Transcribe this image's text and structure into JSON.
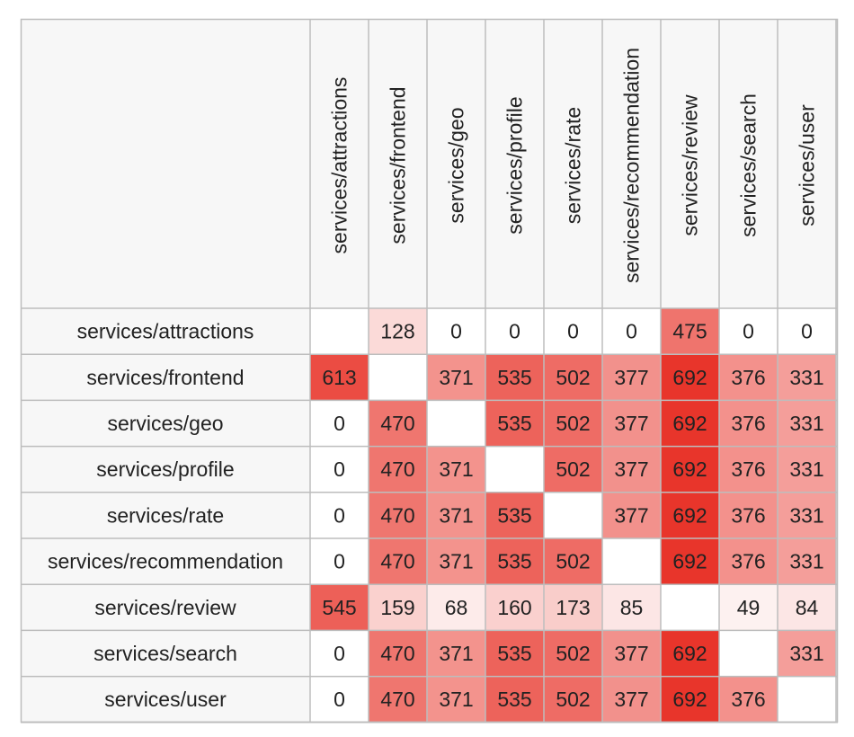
{
  "chart_data": {
    "type": "heatmap",
    "rows": [
      "services/attractions",
      "services/frontend",
      "services/geo",
      "services/profile",
      "services/rate",
      "services/recommendation",
      "services/review",
      "services/search",
      "services/user"
    ],
    "columns": [
      "services/attractions",
      "services/frontend",
      "services/geo",
      "services/profile",
      "services/rate",
      "services/recommendation",
      "services/review",
      "services/search",
      "services/user"
    ],
    "values": [
      [
        null,
        128,
        0,
        0,
        0,
        0,
        475,
        0,
        0
      ],
      [
        613,
        null,
        371,
        535,
        502,
        377,
        692,
        376,
        331
      ],
      [
        0,
        470,
        null,
        535,
        502,
        377,
        692,
        376,
        331
      ],
      [
        0,
        470,
        371,
        null,
        502,
        377,
        692,
        376,
        331
      ],
      [
        0,
        470,
        371,
        535,
        null,
        377,
        692,
        376,
        331
      ],
      [
        0,
        470,
        371,
        535,
        502,
        null,
        692,
        376,
        331
      ],
      [
        545,
        159,
        68,
        160,
        173,
        85,
        null,
        49,
        84
      ],
      [
        0,
        470,
        371,
        535,
        502,
        377,
        692,
        null,
        331
      ],
      [
        0,
        470,
        371,
        535,
        502,
        377,
        692,
        376,
        null
      ]
    ],
    "color_scale": {
      "low": "#ffffff",
      "high": "#e8352b",
      "max": 692
    },
    "colors": {
      "header_bg": "#f7f7f7",
      "grid": "#bdbdbd",
      "text": "#222222",
      "empty_cell": "#ffffff"
    }
  }
}
